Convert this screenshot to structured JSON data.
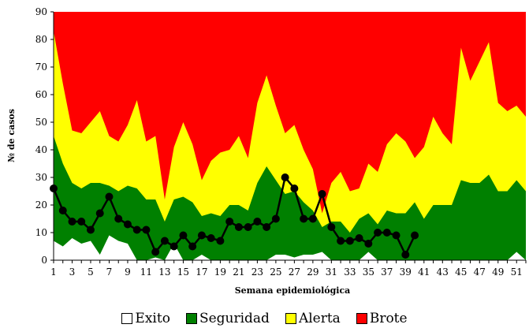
{
  "chart_data": {
    "type": "area",
    "xlabel": "Semana epidemiológica",
    "ylabel": "№ de casos",
    "xlim": [
      1,
      52
    ],
    "ylim": [
      0,
      90
    ],
    "x_ticks": [
      1,
      3,
      5,
      7,
      9,
      11,
      13,
      15,
      17,
      19,
      21,
      23,
      25,
      27,
      29,
      31,
      33,
      35,
      37,
      39,
      41,
      43,
      45,
      47,
      49,
      51
    ],
    "y_ticks": [
      0,
      10,
      20,
      30,
      40,
      50,
      60,
      70,
      80,
      90
    ],
    "x": [
      1,
      2,
      3,
      4,
      5,
      6,
      7,
      8,
      9,
      10,
      11,
      12,
      13,
      14,
      15,
      16,
      17,
      18,
      19,
      20,
      21,
      22,
      23,
      24,
      25,
      26,
      27,
      28,
      29,
      30,
      31,
      32,
      33,
      34,
      35,
      36,
      37,
      38,
      39,
      40,
      41,
      42,
      43,
      44,
      45,
      46,
      47,
      48,
      49,
      50,
      51,
      52
    ],
    "areas": [
      {
        "name": "Brote",
        "color": "#ff0000",
        "values": [
          90,
          90,
          90,
          90,
          90,
          90,
          90,
          90,
          90,
          90,
          90,
          90,
          90,
          90,
          90,
          90,
          90,
          90,
          90,
          90,
          90,
          90,
          90,
          90,
          90,
          90,
          90,
          90,
          90,
          90,
          90,
          90,
          90,
          90,
          90,
          90,
          90,
          90,
          90,
          90,
          90,
          90,
          90,
          90,
          90,
          90,
          90,
          90,
          90,
          90,
          90,
          90
        ]
      },
      {
        "name": "Alerta",
        "color": "#ffff00",
        "values": [
          83,
          64,
          47,
          46,
          50,
          54,
          45,
          43,
          49,
          58,
          43,
          45,
          22,
          41,
          50,
          42,
          29,
          36,
          39,
          40,
          45,
          37,
          57,
          67,
          56,
          46,
          49,
          40,
          33,
          17,
          28,
          32,
          25,
          26,
          35,
          32,
          42,
          46,
          43,
          37,
          41,
          52,
          46,
          42,
          77,
          65,
          72,
          79,
          57,
          54,
          56,
          52
        ]
      },
      {
        "name": "Seguridad",
        "color": "#008000",
        "values": [
          45,
          35,
          28,
          26,
          28,
          28,
          27,
          25,
          27,
          26,
          22,
          22,
          14,
          22,
          23,
          21,
          16,
          17,
          16,
          20,
          20,
          18,
          28,
          34,
          29,
          24,
          25,
          21,
          18,
          12,
          14,
          14,
          10,
          15,
          17,
          13,
          18,
          17,
          17,
          21,
          15,
          20,
          20,
          20,
          29,
          28,
          28,
          31,
          25,
          25,
          29,
          25
        ]
      },
      {
        "name": "Exito",
        "color": "#ffffff",
        "values": [
          7,
          5,
          8,
          6,
          7,
          2,
          9,
          7,
          6,
          0,
          0,
          1,
          0,
          6,
          0,
          0,
          2,
          0,
          0,
          0,
          0,
          0,
          0,
          0,
          2,
          2,
          1,
          2,
          2,
          3,
          0,
          0,
          0,
          0,
          3,
          0,
          0,
          0,
          0,
          0,
          0,
          0,
          0,
          0,
          0,
          0,
          0,
          0,
          0,
          0,
          3,
          0
        ]
      }
    ],
    "line": {
      "x": [
        1,
        2,
        3,
        4,
        5,
        6,
        7,
        8,
        9,
        10,
        11,
        12,
        13,
        14,
        15,
        16,
        17,
        18,
        19,
        20,
        21,
        22,
        23,
        24,
        25,
        26,
        27,
        28,
        29,
        30,
        31,
        32,
        33,
        34,
        35,
        36,
        37,
        38,
        39,
        40
      ],
      "values": [
        26,
        18,
        14,
        14,
        11,
        17,
        23,
        15,
        13,
        11,
        11,
        3,
        7,
        5,
        9,
        5,
        9,
        8,
        7,
        14,
        12,
        12,
        14,
        12,
        15,
        30,
        26,
        15,
        15,
        24,
        12,
        7,
        7,
        8,
        6,
        10,
        10,
        9,
        2,
        9
      ],
      "color": "#000000"
    },
    "legend": {
      "position": "bottom",
      "items": [
        {
          "label": "Exito",
          "color": "#ffffff"
        },
        {
          "label": "Seguridad",
          "color": "#008000"
        },
        {
          "label": "Alerta",
          "color": "#ffff00"
        },
        {
          "label": "Brote",
          "color": "#ff0000"
        }
      ]
    }
  }
}
